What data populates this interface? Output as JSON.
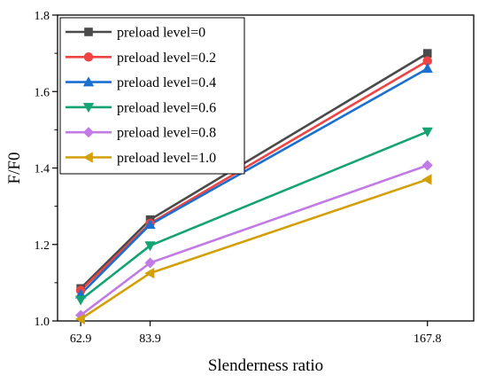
{
  "chart_data": {
    "type": "line",
    "title": "",
    "xlabel": "Slenderness ratio",
    "ylabel": "F/F0",
    "x": [
      62.9,
      83.9,
      167.8
    ],
    "xticks": [
      "62.9",
      "83.9",
      "167.8"
    ],
    "xlim": [
      55.9,
      181.8
    ],
    "ylim": [
      1.0,
      1.8
    ],
    "yticks": [
      "1.0",
      "1.2",
      "1.4",
      "1.6",
      "1.8"
    ],
    "grid": false,
    "legend_position": "top-left",
    "series": [
      {
        "name": "preload level=0",
        "values": [
          1.085,
          1.265,
          1.7
        ],
        "color": "#4a4a4a",
        "marker": "square"
      },
      {
        "name": "preload level=0.2",
        "values": [
          1.08,
          1.255,
          1.68
        ],
        "color": "#ef4444",
        "marker": "circle"
      },
      {
        "name": "preload level=0.4",
        "values": [
          1.07,
          1.252,
          1.66
        ],
        "color": "#1a6fd1",
        "marker": "triangle-up"
      },
      {
        "name": "preload level=0.6",
        "values": [
          1.055,
          1.197,
          1.495
        ],
        "color": "#14a372",
        "marker": "triangle-down"
      },
      {
        "name": "preload level=0.8",
        "values": [
          1.015,
          1.152,
          1.407
        ],
        "color": "#c27be6",
        "marker": "diamond"
      },
      {
        "name": "preload level=1.0",
        "values": [
          1.005,
          1.125,
          1.37
        ],
        "color": "#d4a00a",
        "marker": "triangle-left"
      }
    ]
  }
}
